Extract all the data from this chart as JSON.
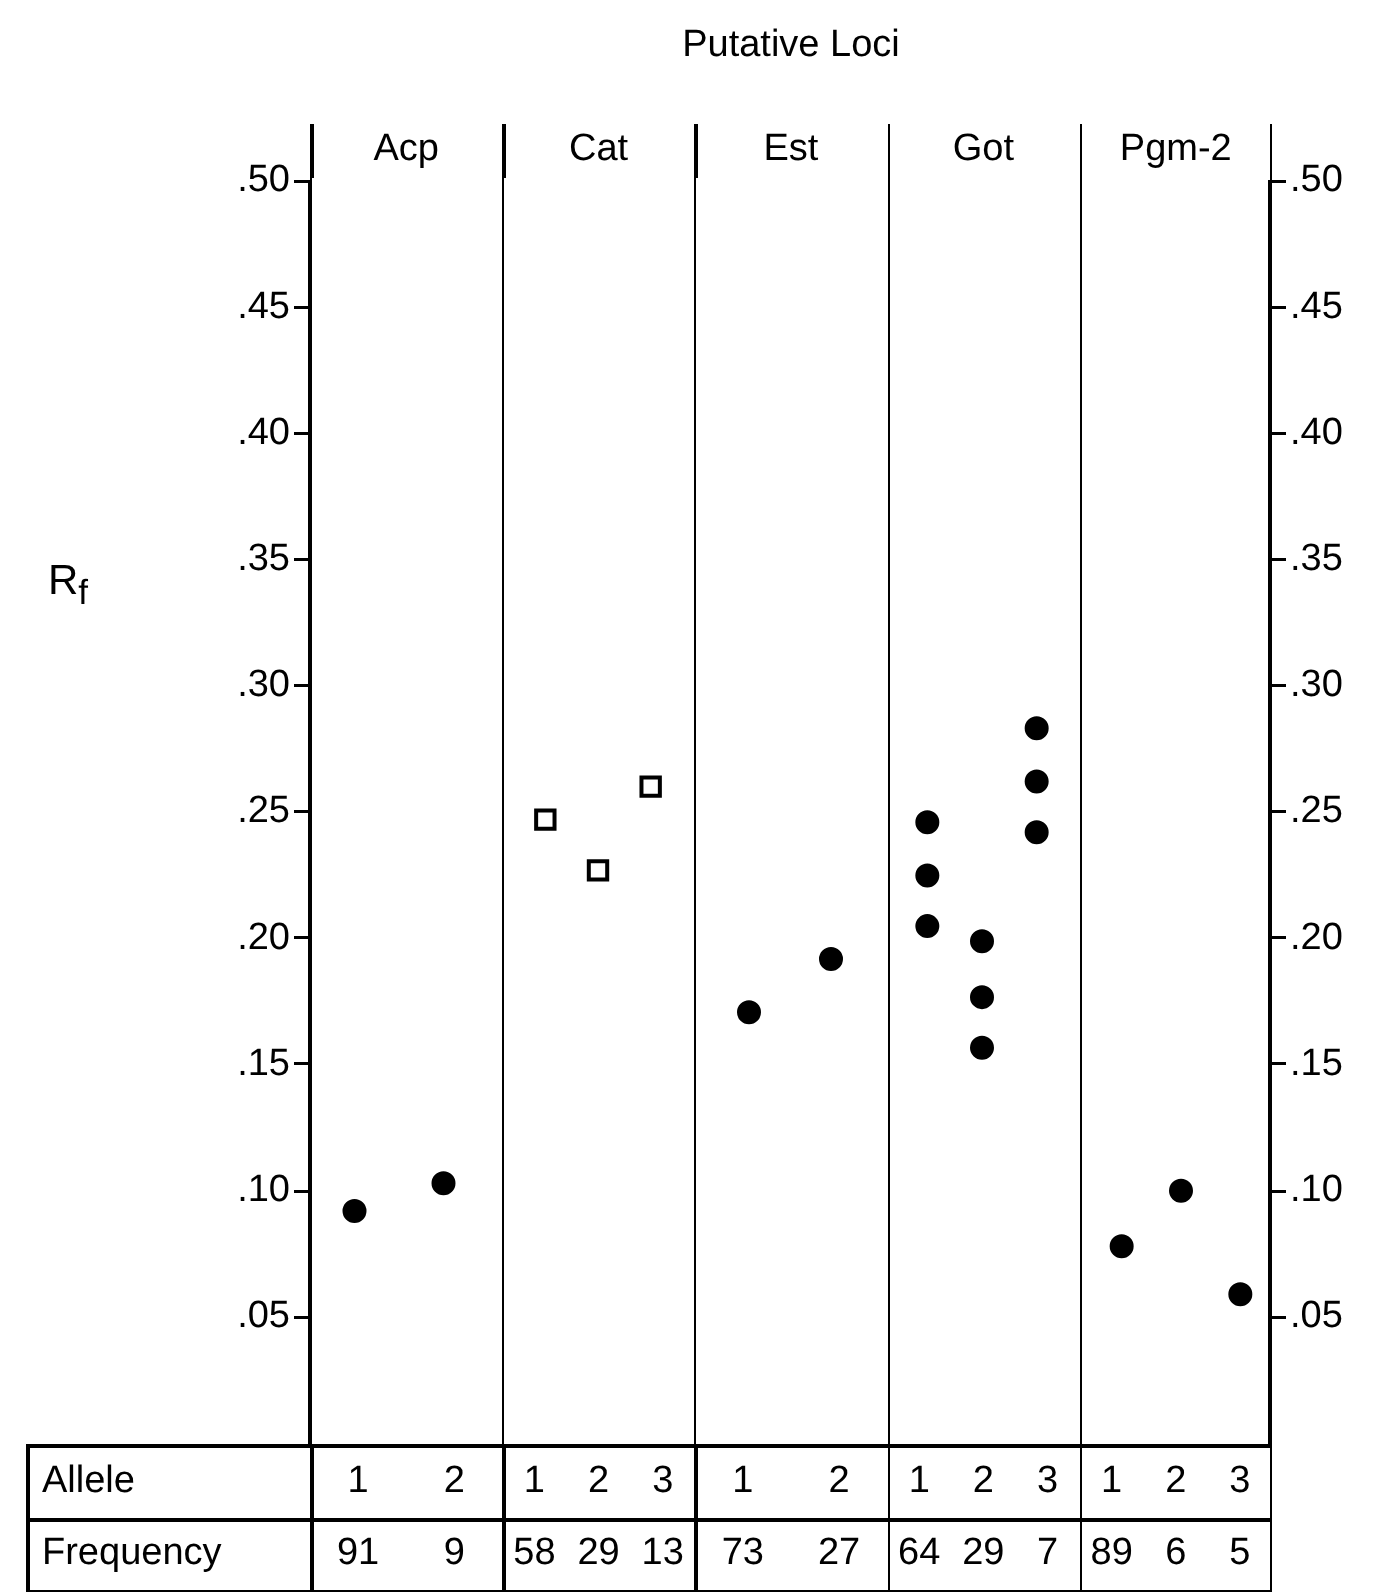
{
  "chart_data": [
    {
      "type": "scatter",
      "title": "Acp",
      "ylabel": "R$_{f}$",
      "xlabel": "Allele",
      "categories": [
        "1",
        "2"
      ],
      "annotations": [
        "Frequency",
        "91",
        "9"
      ],
      "marker": "circle",
      "ylim": [
        0,
        0.5
      ],
      "yticks": [
        {
          "value": 0.05,
          "label": ".05"
        },
        {
          "value": 0.1,
          "label": ".10"
        },
        {
          "value": 0.15,
          "label": ".15"
        },
        {
          "value": 0.2,
          "label": ".20"
        },
        {
          "value": 0.25,
          "label": ".25"
        },
        {
          "value": 0.3,
          "label": ".30"
        },
        {
          "value": 0.35,
          "label": ".35"
        },
        {
          "value": 0.4,
          "label": ".40"
        },
        {
          "value": 0.45,
          "label": ".45"
        },
        {
          "value": 0.5,
          "label": ".50"
        }
      ],
      "series": [
        {
          "color": "#000000",
          "values": [
            0.092,
            0.103
          ]
        }
      ]
    },
    {
      "type": "scatter",
      "title": "Cat",
      "categories": [
        "1",
        "2",
        "3"
      ],
      "annotations": [
        "58",
        "29",
        "13"
      ],
      "marker": "square",
      "ylim": [
        0,
        0.5
      ],
      "tick_labels": "x",
      "series": [
        {
          "color": "#000000",
          "values": [
            0.247,
            0.227,
            0.26
          ]
        }
      ]
    },
    {
      "type": "scatter",
      "title": "Est",
      "subtitle": "Putative Loci",
      "categories": [
        "1",
        "2"
      ],
      "annotations": [
        "73",
        "27"
      ],
      "marker": "circle",
      "ylim": [
        0,
        0.5
      ],
      "tick_labels": "x",
      "series": [
        {
          "color": "#000000",
          "values": [
            0.171,
            0.192
          ]
        }
      ]
    },
    {
      "type": "scatter",
      "title": "Got",
      "categories": [
        "1",
        "2",
        "3"
      ],
      "annotations": [
        "64",
        "29",
        "7"
      ],
      "marker": "circle",
      "ylim": [
        0,
        0.5
      ],
      "tick_labels": "x",
      "series": [
        {
          "color": "#000000",
          "values": [
            0.246,
            0.199,
            0.283
          ]
        },
        {
          "color": "#000000",
          "values": [
            0.225,
            0.177,
            0.262
          ]
        },
        {
          "color": "#000000",
          "values": [
            0.205,
            0.157,
            0.242
          ]
        }
      ]
    },
    {
      "type": "scatter",
      "title": "Pgm-2",
      "categories": [
        "1",
        "2",
        "3"
      ],
      "annotations": [
        "89",
        "6",
        "5"
      ],
      "marker": "circle",
      "y2lim": [
        0,
        0.5
      ],
      "y2ticks": [
        {
          "value": 0.05,
          "label": ".05"
        },
        {
          "value": 0.1,
          "label": ".10"
        },
        {
          "value": 0.15,
          "label": ".15"
        },
        {
          "value": 0.2,
          "label": ".20"
        },
        {
          "value": 0.25,
          "label": ".25"
        },
        {
          "value": 0.3,
          "label": ".30"
        },
        {
          "value": 0.35,
          "label": ".35"
        },
        {
          "value": 0.4,
          "label": ".40"
        },
        {
          "value": 0.45,
          "label": ".45"
        },
        {
          "value": 0.5,
          "label": ".50"
        }
      ],
      "series": [
        {
          "color": "#000000",
          "axis": "y2",
          "values": [
            0.078,
            0.1,
            0.059
          ]
        }
      ]
    }
  ]
}
